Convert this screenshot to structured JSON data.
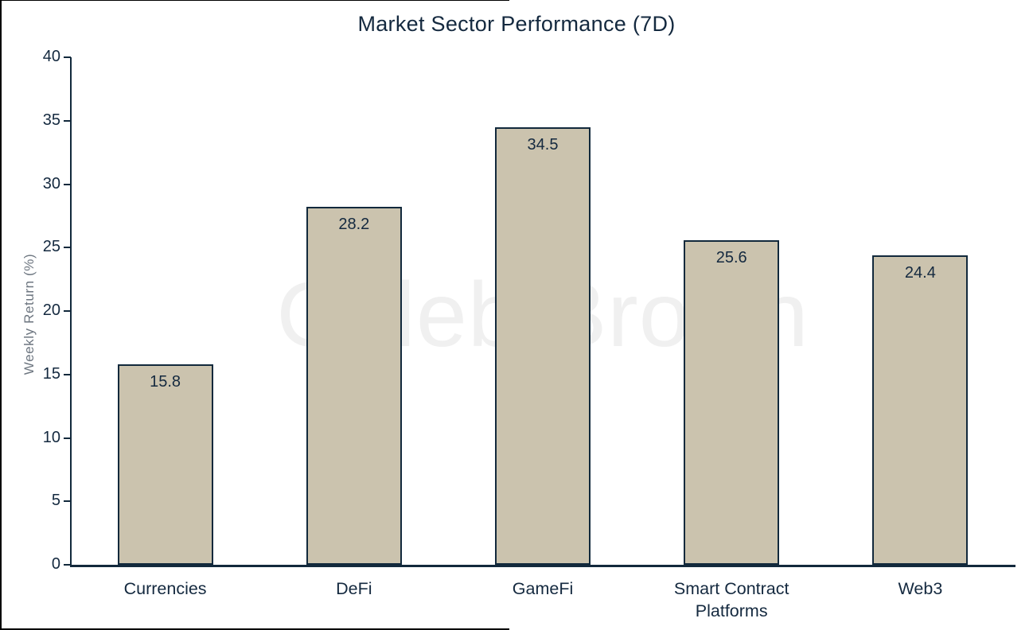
{
  "chart_data": {
    "type": "bar",
    "title": "Market Sector Performance (7D)",
    "xlabel": "",
    "ylabel": "Weekly Return (%)",
    "categories": [
      "Currencies",
      "DeFi",
      "GameFi",
      "Smart Contract Platforms",
      "Web3"
    ],
    "values": [
      15.8,
      28.2,
      34.5,
      25.6,
      24.4
    ],
    "value_labels": [
      "15.8",
      "28.2",
      "34.5",
      "25.6",
      "24.4"
    ],
    "ylim": [
      0,
      40
    ],
    "yticks": [
      0,
      5,
      10,
      15,
      20,
      25,
      30,
      35,
      40
    ],
    "grid": false,
    "legend": false,
    "watermark": "Caleb Brown",
    "colors": {
      "bar_fill": "#cbc3ae",
      "bar_border": "#12293c",
      "axis": "#12293c",
      "text": "#14293f",
      "ylabel_text": "#6d7680",
      "watermark": "#f0f0f0",
      "background": "#ffffff"
    }
  }
}
